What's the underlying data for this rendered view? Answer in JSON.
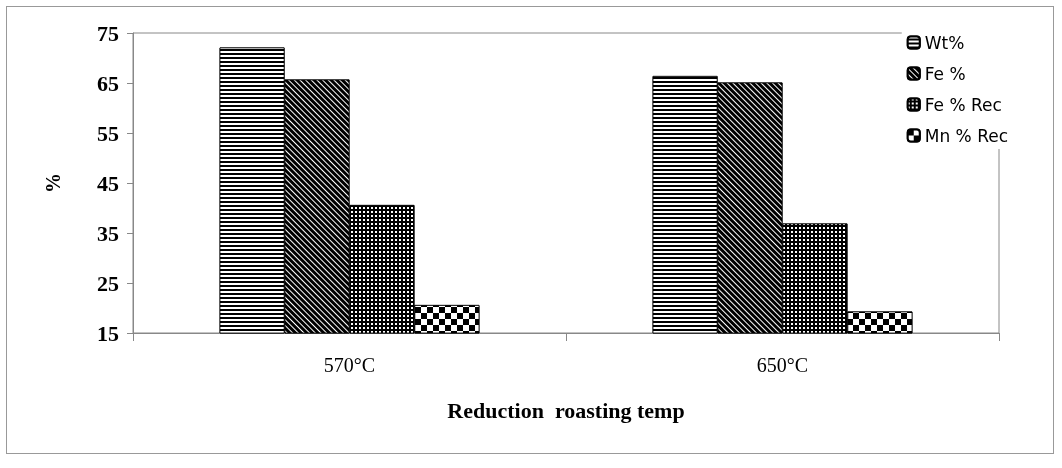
{
  "chart_data": {
    "type": "bar",
    "xlabel": "Reduction  roasting temp",
    "ylabel": "%",
    "categories": [
      "570°C",
      "650°C"
    ],
    "series": [
      {
        "name": "Wt%",
        "color": "#000000",
        "values": [
          72.1,
          66.4
        ]
      },
      {
        "name": "Fe %",
        "color": "#000000",
        "values": [
          65.7,
          65.1
        ]
      },
      {
        "name": "Fe % Rec",
        "color": "#000000",
        "values": [
          40.6,
          36.9
        ]
      },
      {
        "name": "Mn % Rec",
        "color": "#000000",
        "values": [
          20.6,
          19.3
        ]
      }
    ],
    "ylim": [
      15,
      75
    ],
    "yticks": [
      15,
      25,
      35,
      45,
      55,
      65,
      75
    ],
    "grid": false,
    "legend": "top right"
  }
}
